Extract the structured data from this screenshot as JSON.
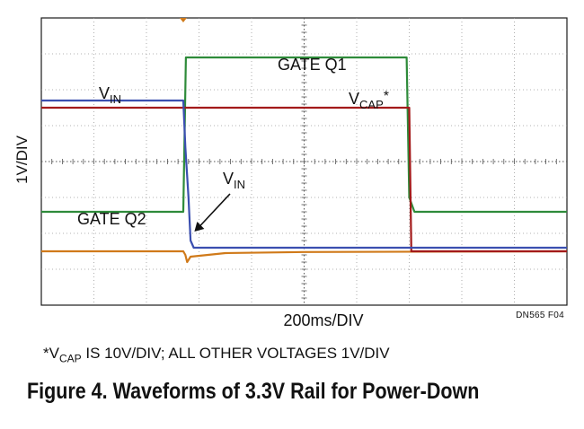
{
  "chart_data": {
    "type": "line",
    "title": "",
    "xlabel": "200ms/DIV",
    "ylabel": "1V/DIV",
    "x_unit": "ms",
    "y_unit": "V",
    "x_divisions": 10,
    "y_divisions": 8,
    "xlim": [
      0,
      2000
    ],
    "ylim": [
      -4,
      4
    ],
    "grid": true,
    "series": [
      {
        "name": "GATE Q1",
        "color": "#2e8b3a",
        "label_text": "GATE Q1",
        "points": [
          [
            0,
            -1.4
          ],
          [
            540,
            -1.4
          ],
          [
            550,
            2.9
          ],
          [
            1390,
            2.9
          ],
          [
            1400,
            -1.0
          ],
          [
            1420,
            -1.4
          ],
          [
            2000,
            -1.4
          ]
        ]
      },
      {
        "name": "VIN",
        "color": "#3b4fb0",
        "label_main": "V",
        "label_sub": "IN",
        "points": [
          [
            0,
            1.7
          ],
          [
            540,
            1.7
          ],
          [
            548,
            0.4
          ],
          [
            560,
            -1.0
          ],
          [
            568,
            -2.2
          ],
          [
            580,
            -2.4
          ],
          [
            2000,
            -2.4
          ]
        ]
      },
      {
        "name": "VCAP",
        "color": "#a31a1a",
        "label_main": "V",
        "label_sub": "CAP",
        "label_suffix": "*",
        "points": [
          [
            0,
            1.5
          ],
          [
            1400,
            1.5
          ],
          [
            1408,
            -2.5
          ],
          [
            2000,
            -2.5
          ]
        ]
      },
      {
        "name": "GATE Q2",
        "color": "#d07a1a",
        "label_text": "GATE Q2",
        "points": [
          [
            0,
            -2.5
          ],
          [
            540,
            -2.5
          ],
          [
            548,
            -2.6
          ],
          [
            555,
            -2.8
          ],
          [
            568,
            -2.65
          ],
          [
            700,
            -2.55
          ],
          [
            1000,
            -2.52
          ],
          [
            2000,
            -2.5
          ]
        ]
      }
    ],
    "annotations": [
      {
        "name": "VIN arrow label",
        "label_main": "V",
        "label_sub": "IN",
        "points_to": [
          562,
          -2.2
        ]
      }
    ],
    "ref_code": "DN565 F04"
  },
  "footnote": {
    "prefix": "*V",
    "sub": "CAP",
    "rest": " IS 10V/DIV; ALL OTHER VOLTAGES 1V/DIV"
  },
  "caption": "Figure 4. Waveforms of 3.3V Rail for Power-Down"
}
